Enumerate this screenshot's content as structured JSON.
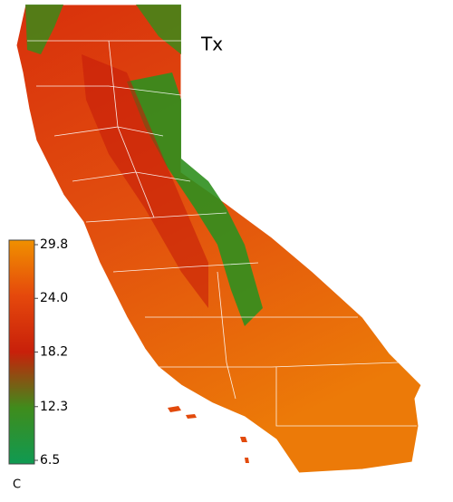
{
  "map": {
    "title": "Tx",
    "colorbar": {
      "unit": "C",
      "range": [
        6.5,
        29.8
      ],
      "ticks": [
        29.8,
        {
          "value": 24,
          "label": "24.0"
        },
        18.2,
        12.3,
        6.5
      ],
      "colors": [
        "#0f9a52",
        "#3f8c1c",
        "#c8200a",
        "#e5480c",
        "#f09000"
      ]
    }
  }
}
